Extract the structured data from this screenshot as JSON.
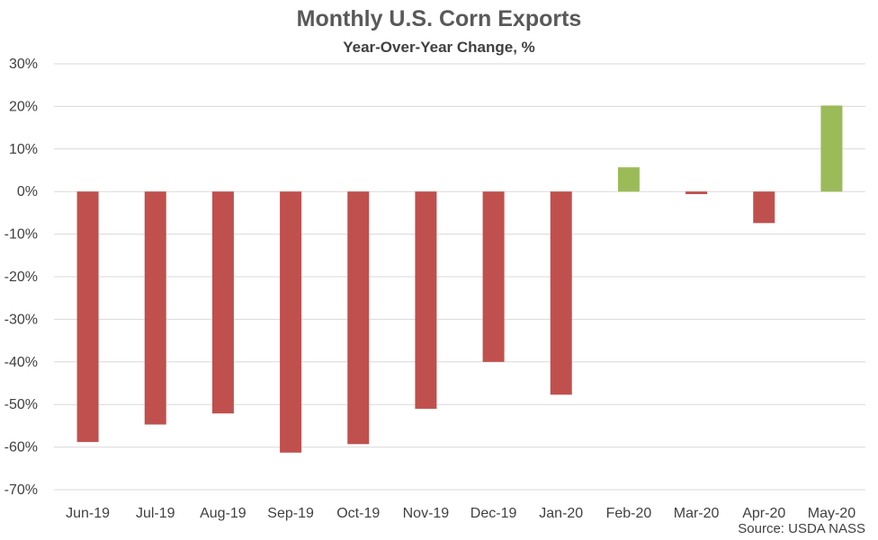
{
  "chart_data": {
    "type": "bar",
    "title": "Monthly U.S. Corn Exports",
    "subtitle": "Year-Over-Year Change, %",
    "source": "Source: USDA NASS",
    "categories": [
      "Jun-19",
      "Jul-19",
      "Aug-19",
      "Sep-19",
      "Oct-19",
      "Nov-19",
      "Dec-19",
      "Jan-20",
      "Feb-20",
      "Mar-20",
      "Apr-20",
      "May-20"
    ],
    "values": [
      -58.8,
      -54.7,
      -52.1,
      -61.3,
      -59.3,
      -51.0,
      -40.0,
      -47.7,
      5.7,
      -0.6,
      -7.4,
      20.2
    ],
    "ylim": [
      -70,
      30
    ],
    "yticks": [
      30,
      20,
      10,
      0,
      -10,
      -20,
      -30,
      -40,
      -50,
      -60,
      -70
    ],
    "ytick_labels": [
      "30%",
      "20%",
      "10%",
      "0%",
      "-10%",
      "-20%",
      "-30%",
      "-40%",
      "-50%",
      "-60%",
      "-70%"
    ],
    "grid": true,
    "colors": {
      "negative": "#C0504D",
      "positive": "#9BBB59",
      "grid": "#D9D9D9",
      "text": "#404040"
    }
  }
}
